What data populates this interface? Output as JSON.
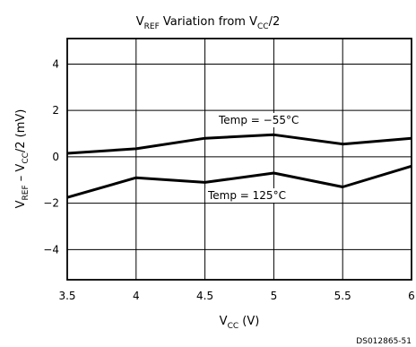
{
  "chart_data": {
    "type": "line",
    "title": {
      "main": "V",
      "sub": "REF",
      "rest": " Variation from V",
      "sub2": "CC",
      "tail": "/2"
    },
    "xlabel": {
      "main": "V",
      "sub": "CC",
      "tail": " (V)"
    },
    "ylabel": {
      "p1": "V",
      "s1": "REF",
      "p2": " – V",
      "s2": "CC",
      "p3": "/2 (mV)"
    },
    "x_ticks": [
      "3.5",
      "4",
      "4.5",
      "5",
      "5.5",
      "6"
    ],
    "y_ticks": [
      "4",
      "2",
      "0",
      "−2",
      "−4"
    ],
    "xlim": [
      3.5,
      6
    ],
    "ylim": [
      -5.3,
      5.1
    ],
    "grid": true,
    "series": [
      {
        "name": "Temp = −55°C",
        "x": [
          3.5,
          4,
          4.5,
          5,
          5.5,
          6
        ],
        "values": [
          0.15,
          0.35,
          0.8,
          0.95,
          0.55,
          0.8
        ]
      },
      {
        "name": "Temp = 125°C",
        "x": [
          3.5,
          4,
          4.5,
          5,
          5.5,
          6
        ],
        "values": [
          -1.75,
          -0.9,
          -1.1,
          -0.7,
          -1.3,
          -0.4
        ]
      }
    ],
    "footnote": "DS012865-51"
  }
}
